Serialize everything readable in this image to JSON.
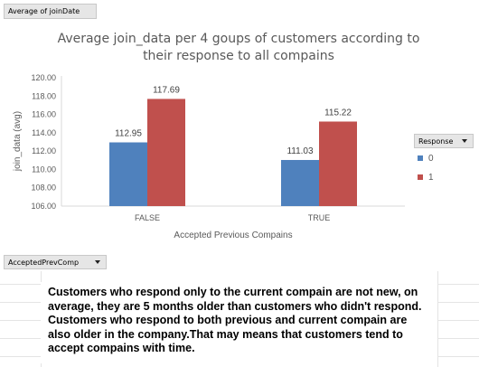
{
  "pivot": {
    "value_field": "Average of joinDate",
    "axis_field": "AcceptedPrevComp",
    "legend_field": "Response"
  },
  "chart_data": {
    "type": "bar",
    "title_line1": "Average join_data per 4 goups of customers according to",
    "title_line2": "their response to all compains",
    "xlabel": "Accepted Previous Compains",
    "ylabel": "join_data (avg)",
    "categories": [
      "FALSE",
      "TRUE"
    ],
    "series": [
      {
        "name": "0",
        "values": [
          112.95,
          111.03
        ],
        "labels": [
          "112.95",
          "111.03"
        ],
        "color": "#4f81bd"
      },
      {
        "name": "1",
        "values": [
          117.69,
          115.22
        ],
        "labels": [
          "117.69",
          "115.22"
        ],
        "color": "#c0504d"
      }
    ],
    "ylim": [
      106,
      120
    ],
    "yticks": [
      "106.00",
      "108.00",
      "110.00",
      "112.00",
      "114.00",
      "116.00",
      "118.00",
      "120.00"
    ],
    "grid": false,
    "legend_position": "right"
  },
  "note": {
    "text": "Customers who respond only to the current compain are not new, on average, they are 5 months older than customers who didn't respond. Customers who respond to both previous and current compain are also older in the company.That may means that customers tend to accept compains with time."
  }
}
